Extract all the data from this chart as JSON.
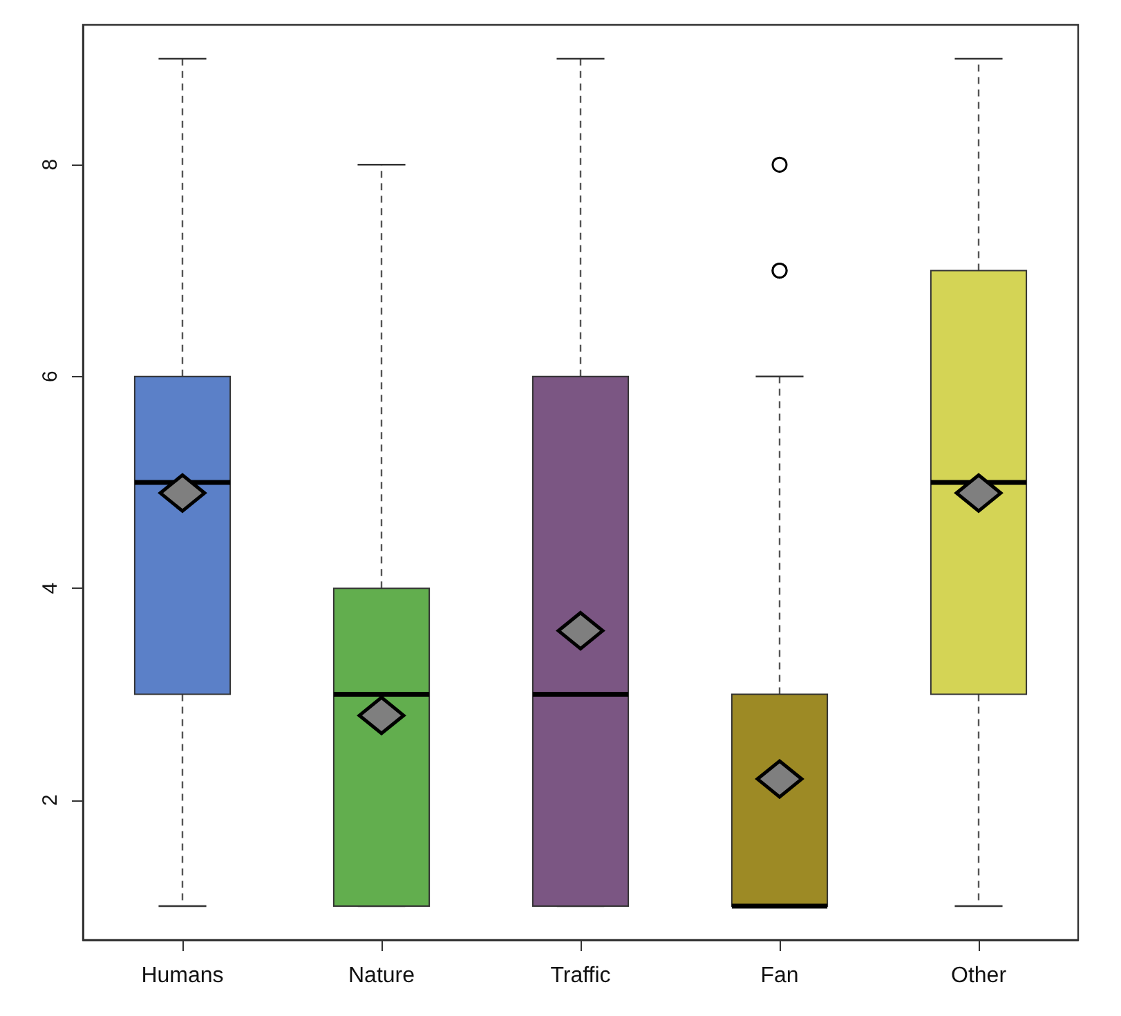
{
  "chart_data": {
    "type": "box",
    "categories": [
      "Humans",
      "Nature",
      "Traffic",
      "Fan",
      "Other"
    ],
    "colors": [
      "#5b80c8",
      "#62ae4e",
      "#7b5683",
      "#9d8a25",
      "#d4d455"
    ],
    "boxes": [
      {
        "low": 1,
        "q1": 3,
        "median": 5,
        "q3": 6,
        "high": 9
      },
      {
        "low": 1,
        "q1": 1,
        "median": 3,
        "q3": 4,
        "high": 8
      },
      {
        "low": 1,
        "q1": 1,
        "median": 3,
        "q3": 6,
        "high": 9
      },
      {
        "low": 1,
        "q1": 1,
        "median": 1,
        "q3": 3,
        "high": 6,
        "outliers": [
          7,
          7,
          8
        ]
      },
      {
        "low": 1,
        "q1": 3,
        "median": 5,
        "q3": 7,
        "high": 9
      }
    ],
    "series": [
      {
        "type": "scatter",
        "x": [
          "Humans",
          "Nature",
          "Traffic",
          "Fan",
          "Other"
        ],
        "values": [
          4.9,
          2.8,
          3.6,
          2.2,
          4.9
        ],
        "color": "#7f7f7f"
      }
    ],
    "ylim": [
      0.68,
      9.32
    ],
    "yticks": [
      2,
      4,
      6,
      8
    ],
    "grid": false,
    "marker": "diamond"
  }
}
